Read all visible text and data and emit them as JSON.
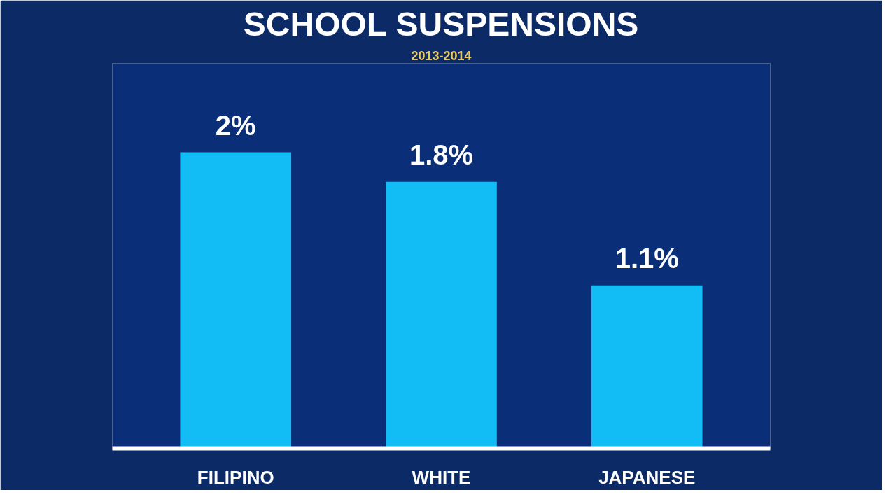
{
  "chart_data": {
    "type": "bar",
    "title": "SCHOOL SUSPENSIONS",
    "subtitle": "2013-2014",
    "categories": [
      "FILIPINO",
      "WHITE",
      "JAPANESE"
    ],
    "values": [
      2,
      1.8,
      1.1
    ],
    "value_labels": [
      "2%",
      "1.8%",
      "1.1%"
    ],
    "color": "#12bdf5",
    "grid": false
  }
}
